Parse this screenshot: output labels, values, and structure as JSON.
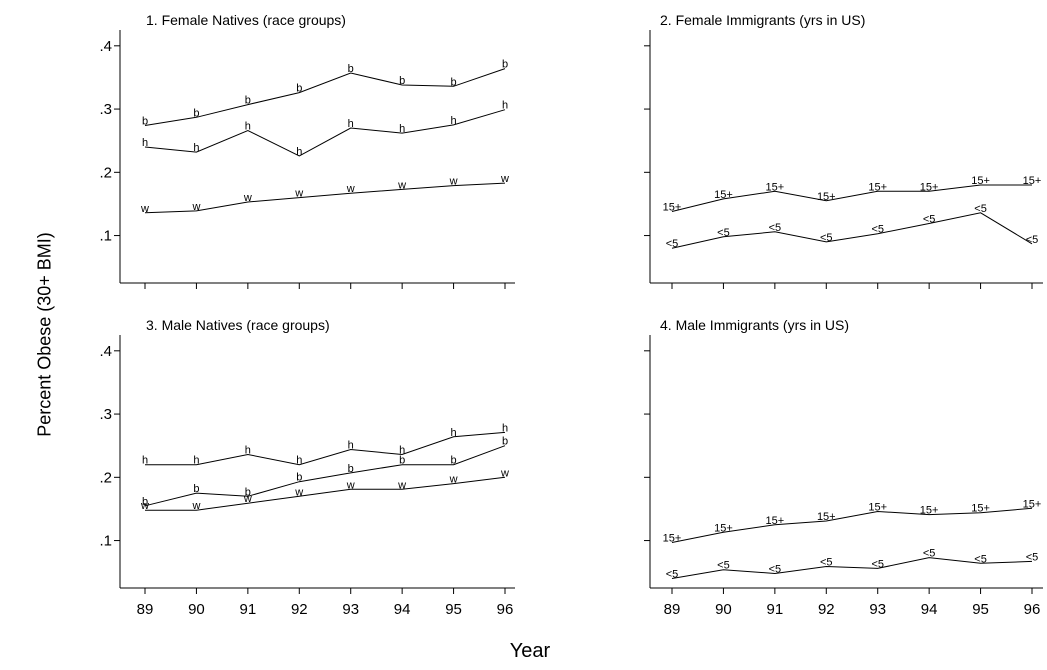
{
  "figure": {
    "y_title": "Percent Obese (30+ BMI)",
    "x_title": "Year"
  },
  "chart_data": [
    {
      "type": "line",
      "title": "1. Female Natives (race groups)",
      "xlabel": "",
      "ylabel": "Percent Obese (30+ BMI)",
      "x": [
        89,
        90,
        91,
        92,
        93,
        94,
        95,
        96
      ],
      "x_tick_labels": [
        "89",
        "90",
        "91",
        "92",
        "93",
        "94",
        "95",
        "96"
      ],
      "y_ticks": [
        0.1,
        0.2,
        0.3,
        0.4
      ],
      "y_tick_labels": [
        ".1",
        ".2",
        ".3",
        ".4"
      ],
      "ylim": [
        0.025,
        0.425
      ],
      "show_x_tick_labels": false,
      "series": [
        {
          "marker": "b",
          "values": [
            0.274,
            0.287,
            0.307,
            0.326,
            0.357,
            0.338,
            0.336,
            0.364
          ]
        },
        {
          "marker": "h",
          "values": [
            0.24,
            0.232,
            0.266,
            0.226,
            0.27,
            0.262,
            0.275,
            0.299
          ]
        },
        {
          "marker": "w",
          "values": [
            0.136,
            0.139,
            0.153,
            0.16,
            0.167,
            0.173,
            0.179,
            0.183
          ]
        }
      ]
    },
    {
      "type": "line",
      "title": "2. Female Immigrants (yrs in US)",
      "xlabel": "",
      "ylabel": "",
      "x": [
        89,
        90,
        91,
        92,
        93,
        94,
        95,
        96
      ],
      "x_tick_labels": [
        "89",
        "90",
        "91",
        "92",
        "93",
        "94",
        "95",
        "96"
      ],
      "y_ticks": [
        0.1,
        0.2,
        0.3,
        0.4
      ],
      "y_tick_labels": [
        "",
        "",
        "",
        ""
      ],
      "ylim": [
        0.025,
        0.425
      ],
      "show_x_tick_labels": false,
      "series": [
        {
          "marker": "15+",
          "values": [
            0.138,
            0.158,
            0.17,
            0.155,
            0.17,
            0.17,
            0.18,
            0.18
          ]
        },
        {
          "marker": "<5",
          "values": [
            0.08,
            0.098,
            0.106,
            0.09,
            0.103,
            0.119,
            0.136,
            0.087
          ]
        }
      ]
    },
    {
      "type": "line",
      "title": "3. Male Natives (race groups)",
      "xlabel": "",
      "ylabel": "Percent Obese (30+ BMI)",
      "x": [
        89,
        90,
        91,
        92,
        93,
        94,
        95,
        96
      ],
      "x_tick_labels": [
        "89",
        "90",
        "91",
        "92",
        "93",
        "94",
        "95",
        "96"
      ],
      "y_ticks": [
        0.1,
        0.2,
        0.3,
        0.4
      ],
      "y_tick_labels": [
        ".1",
        ".2",
        ".3",
        ".4"
      ],
      "ylim": [
        0.025,
        0.425
      ],
      "show_x_tick_labels": true,
      "series": [
        {
          "marker": "h",
          "values": [
            0.22,
            0.22,
            0.236,
            0.22,
            0.244,
            0.236,
            0.264,
            0.271
          ]
        },
        {
          "marker": "b",
          "values": [
            0.155,
            0.175,
            0.17,
            0.193,
            0.207,
            0.22,
            0.22,
            0.25
          ]
        },
        {
          "marker": "w",
          "values": [
            0.148,
            0.148,
            0.159,
            0.17,
            0.181,
            0.181,
            0.19,
            0.2
          ]
        }
      ]
    },
    {
      "type": "line",
      "title": "4. Male Immigrants (yrs in US)",
      "xlabel": "",
      "ylabel": "",
      "x": [
        89,
        90,
        91,
        92,
        93,
        94,
        95,
        96
      ],
      "x_tick_labels": [
        "89",
        "90",
        "91",
        "92",
        "93",
        "94",
        "95",
        "96"
      ],
      "y_ticks": [
        0.1,
        0.2,
        0.3,
        0.4
      ],
      "y_tick_labels": [
        "",
        "",
        "",
        ""
      ],
      "ylim": [
        0.025,
        0.425
      ],
      "show_x_tick_labels": true,
      "series": [
        {
          "marker": "15+",
          "values": [
            0.097,
            0.113,
            0.125,
            0.131,
            0.146,
            0.141,
            0.144,
            0.151
          ]
        },
        {
          "marker": "<5",
          "values": [
            0.04,
            0.054,
            0.048,
            0.059,
            0.056,
            0.073,
            0.064,
            0.067
          ]
        }
      ]
    }
  ]
}
